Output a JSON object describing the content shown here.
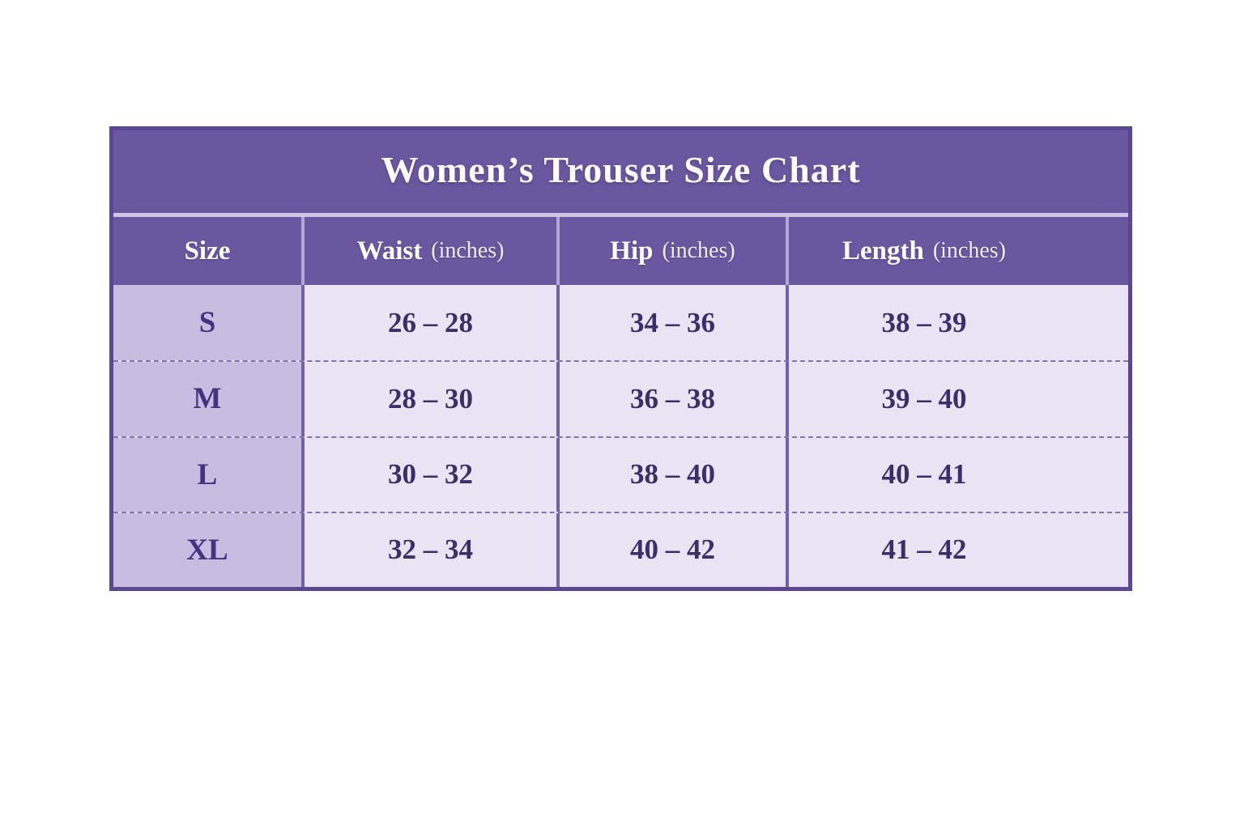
{
  "title": "Women’s Trouser Size Chart",
  "header": {
    "size": {
      "label": "Size"
    },
    "waist": {
      "label": "Waist",
      "unit": "(inches)"
    },
    "hip": {
      "label": "Hip",
      "unit": "(inches)"
    },
    "length": {
      "label": "Length",
      "unit": "(inches)"
    }
  },
  "chart_data": {
    "type": "table",
    "title": "Women’s Trouser Size Chart",
    "columns": [
      "Size",
      "Waist (inches)",
      "Hip (inches)",
      "Length (inches)"
    ],
    "rows": [
      [
        "S",
        "26 – 28",
        "34 – 36",
        "38 – 39"
      ],
      [
        "M",
        "28 – 30",
        "36 – 38",
        "39 – 40"
      ],
      [
        "L",
        "30 – 32",
        "38 – 40",
        "40 – 41"
      ],
      [
        "XL",
        "32 – 34",
        "40 – 42",
        "41 – 42"
      ]
    ]
  },
  "colors": {
    "header_purple": "#6B57A0",
    "outer_border": "#5B4792",
    "title_divider": "#CFC3E6",
    "header_separator": "#B7A7D8",
    "size_column_bg": "#C9BCE0",
    "cell_bg": "#E9E3F3",
    "cell_text": "#3B2F6B",
    "size_text": "#46327F",
    "body_separator": "#7261A8",
    "dashed_line": "#8473B4",
    "page_bg": "#FFFFFF"
  }
}
